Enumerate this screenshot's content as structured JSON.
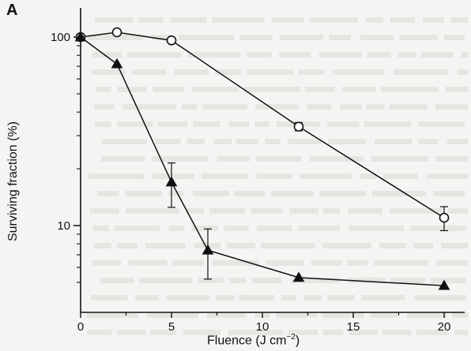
{
  "panel_label": "A",
  "chart_data": {
    "type": "line",
    "xlabel": "Fluence (J cm",
    "xlabel_exponent": "−2",
    "xlabel_close": ")",
    "ylabel": "Surviving fraction (%)",
    "x_scale": "linear",
    "y_scale": "log",
    "xlim": [
      0,
      21
    ],
    "ylim": [
      4,
      110
    ],
    "x_ticks": [
      0,
      5,
      10,
      15,
      20
    ],
    "x_tick_labels": [
      "0",
      "5",
      "10",
      "15",
      "20"
    ],
    "y_ticks": [
      10,
      100
    ],
    "y_tick_labels": [
      "10",
      "100"
    ],
    "grid": false,
    "series": [
      {
        "marker": "circle",
        "fill": "#ffffff",
        "points": [
          {
            "x": 0,
            "y": 100
          },
          {
            "x": 2,
            "y": 106
          },
          {
            "x": 5,
            "y": 96
          },
          {
            "x": 12,
            "y": 33.5,
            "err": 1.7
          },
          {
            "x": 20,
            "y": 11,
            "err": 1.6
          }
        ]
      },
      {
        "marker": "triangle",
        "fill": "#111111",
        "points": [
          {
            "x": 0,
            "y": 100
          },
          {
            "x": 2,
            "y": 72
          },
          {
            "x": 5,
            "y": 17,
            "err": 4.5
          },
          {
            "x": 7,
            "y": 7.4,
            "err": 2.2
          },
          {
            "x": 12,
            "y": 5.3
          },
          {
            "x": 20,
            "y": 4.8
          }
        ]
      }
    ]
  }
}
